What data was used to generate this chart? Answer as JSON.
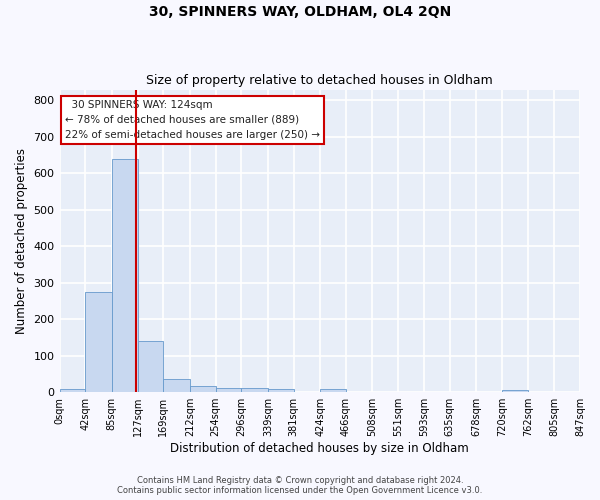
{
  "title": "30, SPINNERS WAY, OLDHAM, OL4 2QN",
  "subtitle": "Size of property relative to detached houses in Oldham",
  "xlabel": "Distribution of detached houses by size in Oldham",
  "ylabel": "Number of detached properties",
  "bin_edges": [
    0,
    42,
    85,
    127,
    169,
    212,
    254,
    296,
    339,
    381,
    424,
    466,
    508,
    551,
    593,
    635,
    678,
    720,
    762,
    805,
    847
  ],
  "bar_heights": [
    10,
    275,
    640,
    140,
    37,
    18,
    12,
    12,
    8,
    0,
    8,
    0,
    0,
    0,
    0,
    0,
    0,
    7,
    0,
    0
  ],
  "bar_color": "#c8d8f0",
  "bar_edge_color": "#6699cc",
  "red_line_x": 124,
  "ylim": [
    0,
    830
  ],
  "yticks": [
    0,
    100,
    200,
    300,
    400,
    500,
    600,
    700,
    800
  ],
  "annotation_text": "  30 SPINNERS WAY: 124sqm\n← 78% of detached houses are smaller (889)\n22% of semi-detached houses are larger (250) →",
  "annotation_box_color": "#ffffff",
  "annotation_box_edge": "#cc0000",
  "footer_line1": "Contains HM Land Registry data © Crown copyright and database right 2024.",
  "footer_line2": "Contains public sector information licensed under the Open Government Licence v3.0.",
  "background_color": "#e8eef8",
  "grid_color": "#ffffff",
  "fig_background": "#f8f8ff",
  "tick_labels": [
    "0sqm",
    "42sqm",
    "85sqm",
    "127sqm",
    "169sqm",
    "212sqm",
    "254sqm",
    "296sqm",
    "339sqm",
    "381sqm",
    "424sqm",
    "466sqm",
    "508sqm",
    "551sqm",
    "593sqm",
    "635sqm",
    "678sqm",
    "720sqm",
    "762sqm",
    "805sqm",
    "847sqm"
  ]
}
